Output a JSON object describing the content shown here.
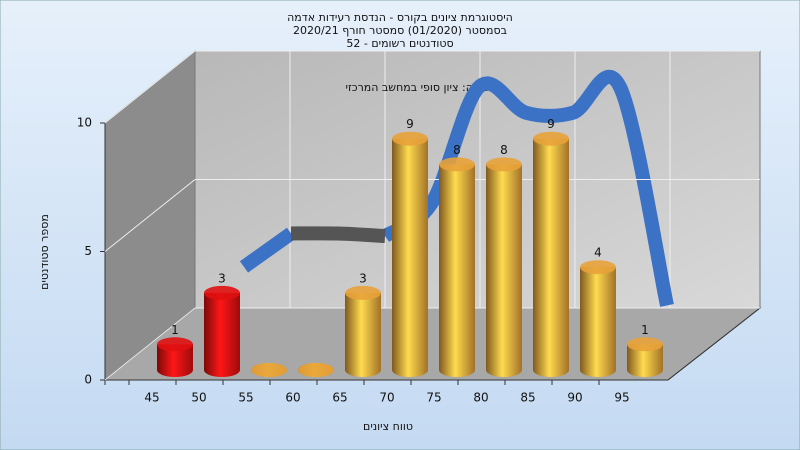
{
  "chart_data": {
    "type": "bar",
    "title": [
      "היסטוגרמת ציונים בקורס - הנדסת רעידות אדמה",
      "בסמסטר  (01/2020)  סמסטר חורף  2020/21",
      "סטודנטים רשומים - 52"
    ],
    "subtitle": "במשימה: ציון סופי במחשב המרכזי",
    "x_label": "טווח ציונים",
    "y_label": "מספר סטודנטים",
    "categories": [
      "45",
      "50",
      "55",
      "60",
      "65",
      "70",
      "75",
      "80",
      "85",
      "90",
      "95"
    ],
    "values": [
      1,
      3,
      0,
      0,
      3,
      9,
      8,
      8,
      9,
      4,
      1
    ],
    "colors": [
      "#e01010",
      "#e01010",
      "#e8a23a",
      "#e8a23a",
      "#e8a23a",
      "#e8a23a",
      "#e8a23a",
      "#e8a23a",
      "#e8a23a",
      "#e8a23a",
      "#e8a23a"
    ],
    "line_series": [
      {
        "color": "#3b72c6",
        "values": [
          null,
          3,
          4.3,
          null,
          4.2,
          5.5,
          10,
          9,
          9,
          10,
          1.5
        ]
      },
      {
        "color": "#555555",
        "values": [
          null,
          null,
          4.3,
          4.3,
          4.2,
          null,
          null,
          null,
          null,
          null,
          null
        ]
      }
    ],
    "ylim": [
      0,
      10
    ],
    "yticks": [
      0,
      5,
      10
    ],
    "grid": true
  }
}
